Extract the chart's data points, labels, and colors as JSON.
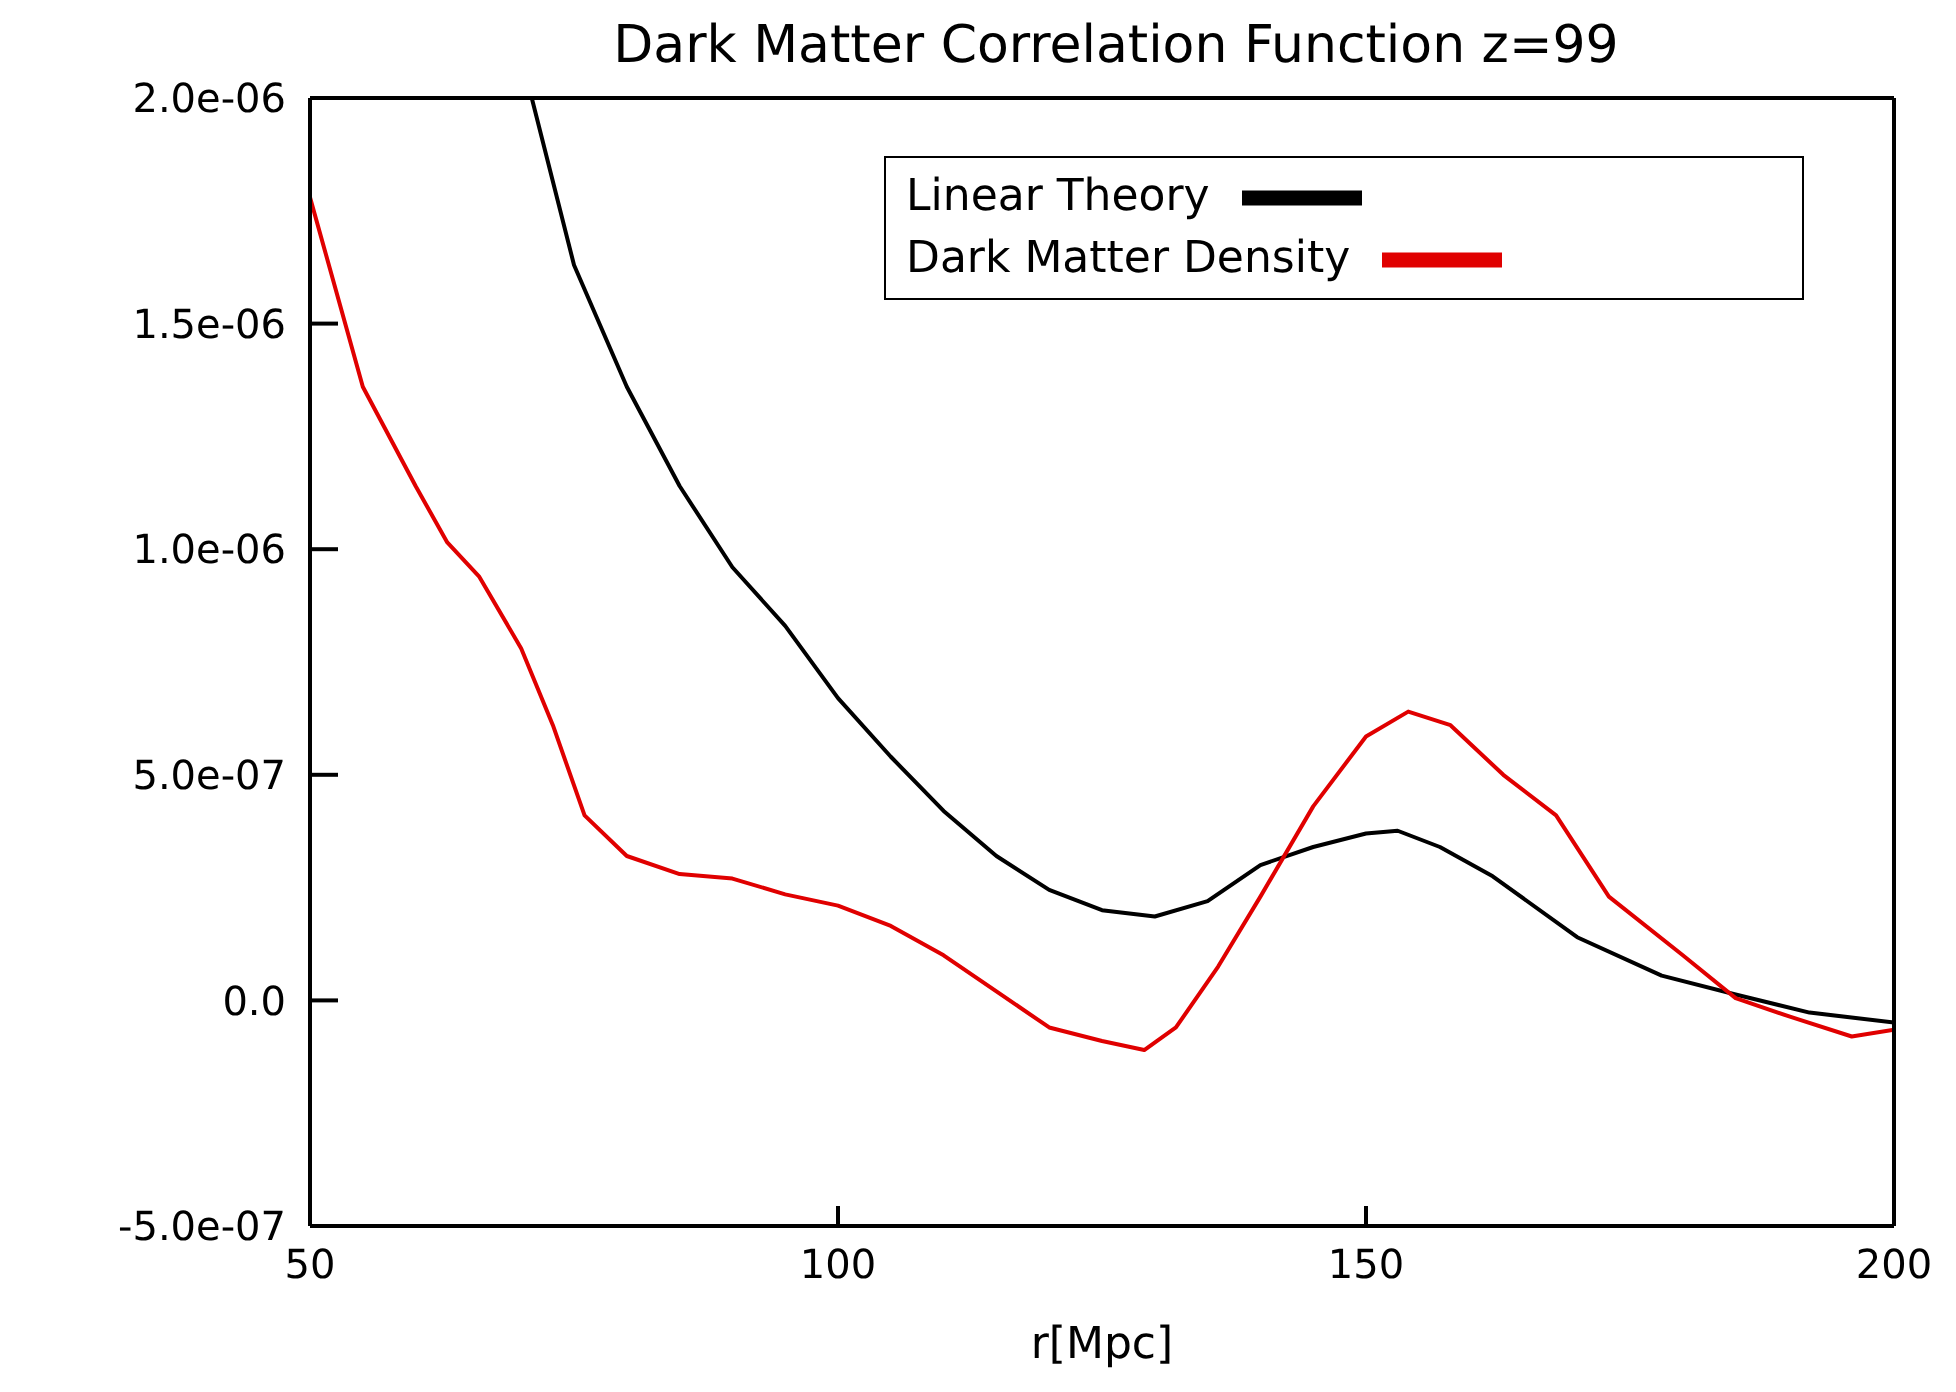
{
  "chart_data": {
    "type": "line",
    "title": "Dark Matter Correlation Function z=99",
    "xlabel": "r[Mpc]",
    "xlim": [
      50,
      200
    ],
    "xticks": [
      50,
      100,
      150,
      200
    ],
    "ylim": [
      -5e-07,
      2e-06
    ],
    "yticks": [
      {
        "value": -5e-07,
        "label": "-5.0e-07"
      },
      {
        "value": 0,
        "label": "0.0"
      },
      {
        "value": 5e-07,
        "label": "5.0e-07"
      },
      {
        "value": 1e-06,
        "label": "1.0e-06"
      },
      {
        "value": 1.5e-06,
        "label": "1.5e-06"
      },
      {
        "value": 2e-06,
        "label": "2.0e-06"
      }
    ],
    "grid": false,
    "legend": "top right",
    "marker": "none",
    "line_style": "solid",
    "series": [
      {
        "name": "Linear Theory",
        "color": "#000000",
        "x": [
          71,
          75,
          80,
          85,
          90,
          95,
          100,
          105,
          110,
          115,
          120,
          125,
          130,
          135,
          140,
          145,
          150,
          153,
          157,
          162,
          170,
          178,
          185,
          192,
          200
        ],
        "values": [
          2e-06,
          1.63e-06,
          1.36e-06,
          1.14e-06,
          9.6e-07,
          8.3e-07,
          6.7e-07,
          5.4e-07,
          4.2e-07,
          3.2e-07,
          2.45e-07,
          2e-07,
          1.86e-07,
          2.2e-07,
          3e-07,
          3.4e-07,
          3.7e-07,
          3.76e-07,
          3.4e-07,
          2.75e-07,
          1.4e-07,
          5.5e-08,
          1.3e-08,
          -2.7e-08,
          -4.9e-08
        ]
      },
      {
        "name": "Dark Matter Density",
        "color": "#e00000",
        "x": [
          50,
          55,
          60,
          63,
          66,
          70,
          73,
          76,
          80,
          85,
          90,
          95,
          100,
          105,
          110,
          115,
          120,
          125,
          129,
          132,
          136,
          140,
          145,
          150,
          154,
          158,
          163,
          168,
          173,
          180,
          185,
          190,
          196,
          200
        ],
        "values": [
          1.78e-06,
          1.36e-06,
          1.14e-06,
          1.015e-06,
          9.4e-07,
          7.8e-07,
          6.1e-07,
          4.1e-07,
          3.2e-07,
          2.8e-07,
          2.7e-07,
          2.35e-07,
          2.1e-07,
          1.65e-07,
          1e-07,
          2e-08,
          -6e-08,
          -9e-08,
          -1.1e-07,
          -6e-08,
          7.5e-08,
          2.3e-07,
          4.3e-07,
          5.85e-07,
          6.4e-07,
          6.1e-07,
          5e-07,
          4.1e-07,
          2.3e-07,
          1e-07,
          5e-09,
          -3.5e-08,
          -8e-08,
          -6.5e-08
        ]
      }
    ]
  }
}
